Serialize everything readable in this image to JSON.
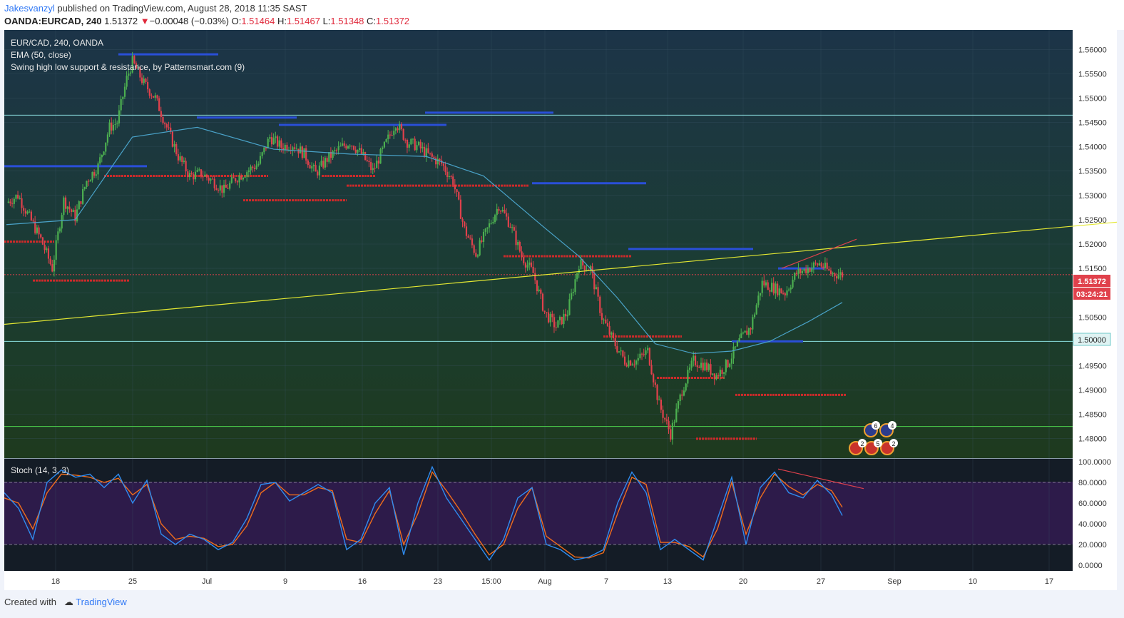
{
  "header": {
    "author": "Jakesvanzyl",
    "published_text": " published on TradingView.com, August 28, 2018 11:35 SAST",
    "symbol": "OANDA:EURCAD, 240",
    "last": "1.51372",
    "change_arrow": "▼",
    "change": "−0.00048 (−0.03%)",
    "o_label": "O:",
    "o_value": "1.51464",
    "h_label": "H:",
    "h_value": "1.51467",
    "l_label": "L:",
    "l_value": "1.51348",
    "c_label": "C:",
    "c_value": "1.51372"
  },
  "legend": {
    "series": "EUR/CAD, 240, OANDA",
    "ema": "EMA (50, close)",
    "swing": "Swing high low support & resistance, by Patternsmart.com (9)",
    "stoch": "Stoch (14, 3, 3)"
  },
  "price_label": "1.51372",
  "countdown": "03:24:21",
  "level_label": "1.50000",
  "footer": {
    "created": "Created with",
    "brand": "TradingView"
  },
  "colors": {
    "up": "#4caf50",
    "down": "#e0414c",
    "ema": "#4aa3c9",
    "trend": "#e4e832",
    "support": "#cc2a2a",
    "resistance": "#2a4fd8",
    "stoch_k": "#2f8cf0",
    "stoch_d": "#ef6c1c"
  },
  "chart_data": {
    "type": "candlestick",
    "title": "EUR/CAD, 240, OANDA",
    "ylim": [
      1.476,
      1.564
    ],
    "y_ticks": [
      "1.56000",
      "1.55500",
      "1.55000",
      "1.54500",
      "1.54000",
      "1.53500",
      "1.53000",
      "1.52500",
      "1.52000",
      "1.51500",
      "1.51000",
      "1.50500",
      "1.50000",
      "1.49500",
      "1.49000",
      "1.48500",
      "1.48000"
    ],
    "x_ticks": [
      "18",
      "25",
      "Jul",
      "9",
      "16",
      "23",
      "15:00",
      "Aug",
      "7",
      "13",
      "20",
      "27",
      "Sep",
      "10",
      "17"
    ],
    "close_path": [
      [
        0,
        1.5285
      ],
      [
        6,
        1.53
      ],
      [
        12,
        1.5255
      ],
      [
        18,
        1.521
      ],
      [
        24,
        1.515
      ],
      [
        30,
        1.529
      ],
      [
        36,
        1.5255
      ],
      [
        42,
        1.533
      ],
      [
        48,
        1.536
      ],
      [
        54,
        1.544
      ],
      [
        58,
        1.545
      ],
      [
        63,
        1.554
      ],
      [
        66,
        1.5575
      ],
      [
        72,
        1.553
      ],
      [
        78,
        1.55
      ],
      [
        84,
        1.544
      ],
      [
        90,
        1.538
      ],
      [
        96,
        1.534
      ],
      [
        102,
        1.5345
      ],
      [
        108,
        1.533
      ],
      [
        114,
        1.531
      ],
      [
        120,
        1.5335
      ],
      [
        126,
        1.535
      ],
      [
        132,
        1.5365
      ],
      [
        138,
        1.542
      ],
      [
        144,
        1.54
      ],
      [
        150,
        1.5405
      ],
      [
        156,
        1.5385
      ],
      [
        162,
        1.5345
      ],
      [
        168,
        1.5375
      ],
      [
        174,
        1.5395
      ],
      [
        180,
        1.541
      ],
      [
        186,
        1.5385
      ],
      [
        192,
        1.535
      ],
      [
        198,
        1.54
      ],
      [
        204,
        1.545
      ],
      [
        210,
        1.541
      ],
      [
        216,
        1.54
      ],
      [
        222,
        1.538
      ],
      [
        228,
        1.5365
      ],
      [
        234,
        1.533
      ],
      [
        240,
        1.523
      ],
      [
        246,
        1.518
      ],
      [
        252,
        1.523
      ],
      [
        258,
        1.528
      ],
      [
        264,
        1.524
      ],
      [
        270,
        1.5175
      ],
      [
        276,
        1.514
      ],
      [
        282,
        1.506
      ],
      [
        288,
        1.503
      ],
      [
        294,
        1.506
      ],
      [
        300,
        1.516
      ],
      [
        306,
        1.515
      ],
      [
        312,
        1.505
      ],
      [
        318,
        1.5
      ],
      [
        324,
        1.496
      ],
      [
        330,
        1.496
      ],
      [
        336,
        1.498
      ],
      [
        342,
        1.487
      ],
      [
        348,
        1.481
      ],
      [
        354,
        1.49
      ],
      [
        360,
        1.496
      ],
      [
        366,
        1.495
      ],
      [
        372,
        1.493
      ],
      [
        378,
        1.4955
      ],
      [
        384,
        1.5
      ],
      [
        390,
        1.503
      ],
      [
        396,
        1.512
      ],
      [
        402,
        1.511
      ],
      [
        408,
        1.51
      ],
      [
        414,
        1.514
      ],
      [
        420,
        1.515
      ],
      [
        426,
        1.516
      ],
      [
        432,
        1.514
      ],
      [
        438,
        1.5137
      ]
    ],
    "ema_50": [
      [
        0,
        1.524
      ],
      [
        36,
        1.525
      ],
      [
        66,
        1.542
      ],
      [
        100,
        1.544
      ],
      [
        140,
        1.5395
      ],
      [
        180,
        1.5385
      ],
      [
        220,
        1.538
      ],
      [
        250,
        1.534
      ],
      [
        280,
        1.524
      ],
      [
        300,
        1.5175
      ],
      [
        320,
        1.509
      ],
      [
        340,
        1.4995
      ],
      [
        360,
        1.4975
      ],
      [
        380,
        1.498
      ],
      [
        400,
        1.5
      ],
      [
        420,
        1.504
      ],
      [
        438,
        1.508
      ]
    ],
    "trendline": {
      "x": [
        0,
        1560
      ],
      "y": [
        1.5035,
        1.5245
      ]
    },
    "horizontal_levels": [
      1.5,
      1.5465,
      1.4825
    ],
    "swing_resistance": [
      {
        "x": [
          0,
          200
        ],
        "y": 1.536
      },
      {
        "x": [
          160,
          300
        ],
        "y": 1.559
      },
      {
        "x": [
          270,
          410
        ],
        "y": 1.546
      },
      {
        "x": [
          385,
          620
        ],
        "y": 1.5445
      },
      {
        "x": [
          590,
          770
        ],
        "y": 1.547
      },
      {
        "x": [
          740,
          900
        ],
        "y": 1.5325
      },
      {
        "x": [
          875,
          1050
        ],
        "y": 1.519
      },
      {
        "x": [
          1020,
          1120
        ],
        "y": 1.5
      },
      {
        "x": [
          1085,
          1150
        ],
        "y": 1.515
      }
    ],
    "swing_support": [
      {
        "x": [
          0,
          70
        ],
        "y": 1.5205
      },
      {
        "x": [
          40,
          175
        ],
        "y": 1.5125
      },
      {
        "x": [
          140,
          370
        ],
        "y": 1.534
      },
      {
        "x": [
          335,
          480
        ],
        "y": 1.529
      },
      {
        "x": [
          445,
          520
        ],
        "y": 1.534
      },
      {
        "x": [
          480,
          735
        ],
        "y": 1.532
      },
      {
        "x": [
          700,
          880
        ],
        "y": 1.5175
      },
      {
        "x": [
          840,
          950
        ],
        "y": 1.501
      },
      {
        "x": [
          915,
          1010
        ],
        "y": 1.4925
      },
      {
        "x": [
          970,
          1055
        ],
        "y": 1.48
      },
      {
        "x": [
          1025,
          1180
        ],
        "y": 1.489
      }
    ],
    "stochastic": {
      "ylim": [
        0,
        100
      ],
      "y_ticks": [
        "100.0000",
        "80.0000",
        "60.0000",
        "40.0000",
        "20.0000",
        "0.0000"
      ],
      "k": [
        [
          0,
          70
        ],
        [
          20,
          55
        ],
        [
          40,
          25
        ],
        [
          60,
          80
        ],
        [
          80,
          92
        ],
        [
          100,
          85
        ],
        [
          120,
          88
        ],
        [
          140,
          75
        ],
        [
          160,
          88
        ],
        [
          180,
          60
        ],
        [
          200,
          82
        ],
        [
          220,
          30
        ],
        [
          240,
          20
        ],
        [
          260,
          30
        ],
        [
          280,
          25
        ],
        [
          300,
          15
        ],
        [
          320,
          22
        ],
        [
          340,
          45
        ],
        [
          360,
          78
        ],
        [
          380,
          80
        ],
        [
          400,
          62
        ],
        [
          420,
          70
        ],
        [
          440,
          78
        ],
        [
          460,
          70
        ],
        [
          480,
          15
        ],
        [
          500,
          25
        ],
        [
          520,
          60
        ],
        [
          540,
          75
        ],
        [
          560,
          10
        ],
        [
          580,
          60
        ],
        [
          600,
          95
        ],
        [
          620,
          65
        ],
        [
          640,
          45
        ],
        [
          660,
          25
        ],
        [
          680,
          5
        ],
        [
          700,
          25
        ],
        [
          720,
          65
        ],
        [
          740,
          75
        ],
        [
          760,
          20
        ],
        [
          780,
          15
        ],
        [
          800,
          5
        ],
        [
          820,
          8
        ],
        [
          840,
          15
        ],
        [
          860,
          60
        ],
        [
          880,
          90
        ],
        [
          900,
          70
        ],
        [
          920,
          15
        ],
        [
          940,
          25
        ],
        [
          960,
          15
        ],
        [
          980,
          5
        ],
        [
          1000,
          45
        ],
        [
          1020,
          85
        ],
        [
          1040,
          20
        ],
        [
          1060,
          75
        ],
        [
          1080,
          90
        ],
        [
          1100,
          70
        ],
        [
          1120,
          65
        ],
        [
          1140,
          82
        ],
        [
          1160,
          68
        ],
        [
          1175,
          48
        ]
      ],
      "d": [
        [
          0,
          65
        ],
        [
          20,
          60
        ],
        [
          40,
          35
        ],
        [
          60,
          70
        ],
        [
          80,
          88
        ],
        [
          100,
          87
        ],
        [
          120,
          85
        ],
        [
          140,
          80
        ],
        [
          160,
          84
        ],
        [
          180,
          68
        ],
        [
          200,
          78
        ],
        [
          220,
          40
        ],
        [
          240,
          25
        ],
        [
          260,
          28
        ],
        [
          280,
          26
        ],
        [
          300,
          18
        ],
        [
          320,
          20
        ],
        [
          340,
          38
        ],
        [
          360,
          70
        ],
        [
          380,
          80
        ],
        [
          400,
          68
        ],
        [
          420,
          68
        ],
        [
          440,
          75
        ],
        [
          460,
          72
        ],
        [
          480,
          25
        ],
        [
          500,
          22
        ],
        [
          520,
          50
        ],
        [
          540,
          72
        ],
        [
          560,
          20
        ],
        [
          580,
          50
        ],
        [
          600,
          90
        ],
        [
          620,
          72
        ],
        [
          640,
          52
        ],
        [
          660,
          30
        ],
        [
          680,
          10
        ],
        [
          700,
          20
        ],
        [
          720,
          55
        ],
        [
          740,
          75
        ],
        [
          760,
          28
        ],
        [
          780,
          18
        ],
        [
          800,
          8
        ],
        [
          820,
          7
        ],
        [
          840,
          12
        ],
        [
          860,
          50
        ],
        [
          880,
          85
        ],
        [
          900,
          78
        ],
        [
          920,
          22
        ],
        [
          940,
          22
        ],
        [
          960,
          18
        ],
        [
          980,
          8
        ],
        [
          1000,
          35
        ],
        [
          1020,
          80
        ],
        [
          1040,
          30
        ],
        [
          1060,
          65
        ],
        [
          1080,
          88
        ],
        [
          1100,
          76
        ],
        [
          1120,
          68
        ],
        [
          1140,
          78
        ],
        [
          1160,
          72
        ],
        [
          1175,
          56
        ]
      ],
      "divergence_line": {
        "x": [
          1085,
          1205
        ],
        "y": [
          93,
          74
        ]
      }
    }
  }
}
